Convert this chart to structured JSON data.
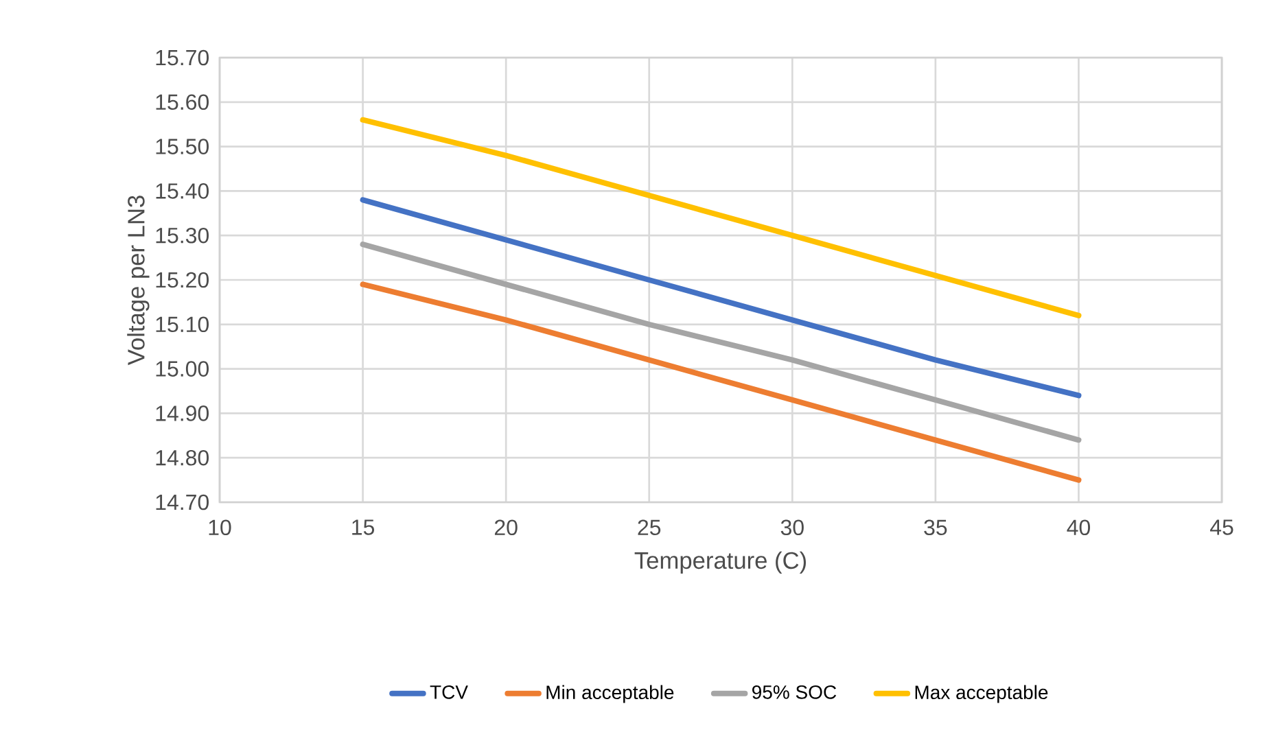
{
  "chart_data": {
    "type": "line",
    "xlabel": "Temperature  (C)",
    "ylabel": "Voltage per LN3",
    "x": [
      15,
      20,
      25,
      30,
      35,
      40
    ],
    "series": [
      {
        "name": "TCV",
        "color": "#4472c4",
        "values": [
          15.38,
          15.29,
          15.2,
          15.11,
          15.02,
          14.94
        ]
      },
      {
        "name": "Min acceptable",
        "color": "#ed7d31",
        "values": [
          15.19,
          15.11,
          15.02,
          14.93,
          14.84,
          14.75
        ]
      },
      {
        "name": "95% SOC",
        "color": "#a5a5a5",
        "values": [
          15.28,
          15.19,
          15.1,
          15.02,
          14.93,
          14.84
        ]
      },
      {
        "name": "Max acceptable",
        "color": "#ffc000",
        "values": [
          15.56,
          15.48,
          15.39,
          15.3,
          15.21,
          15.12
        ]
      }
    ],
    "xlim": [
      10,
      45
    ],
    "xticks": [
      10,
      15,
      20,
      25,
      30,
      35,
      40,
      45
    ],
    "ylim": [
      14.7,
      15.7
    ],
    "yticks": [
      {
        "value": 14.7,
        "label": "14.70"
      },
      {
        "value": 14.8,
        "label": "14.80"
      },
      {
        "value": 14.9,
        "label": "14.90"
      },
      {
        "value": 15.0,
        "label": "15.00"
      },
      {
        "value": 15.1,
        "label": "15.10"
      },
      {
        "value": 15.2,
        "label": "15.20"
      },
      {
        "value": 15.3,
        "label": "15.30"
      },
      {
        "value": 15.4,
        "label": "15.40"
      },
      {
        "value": 15.5,
        "label": "15.50"
      },
      {
        "value": 15.6,
        "label": "15.60"
      },
      {
        "value": 15.7,
        "label": "15.70"
      }
    ],
    "grid": true,
    "legend": "bottom",
    "marker": "none",
    "line_style": "solid"
  }
}
